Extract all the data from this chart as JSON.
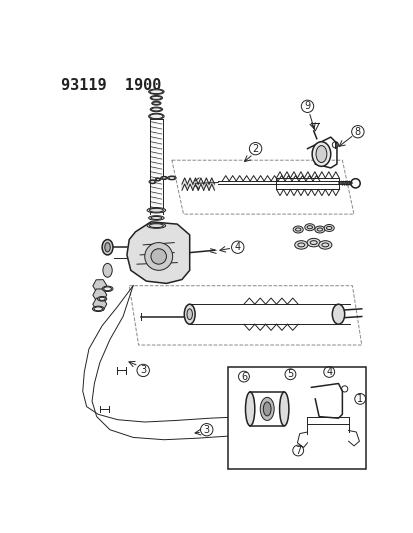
{
  "title": "93119  1900",
  "bg_color": "#ffffff",
  "line_color": "#222222",
  "title_fontsize": 11,
  "fig_width": 4.14,
  "fig_height": 5.33,
  "dpi": 100
}
